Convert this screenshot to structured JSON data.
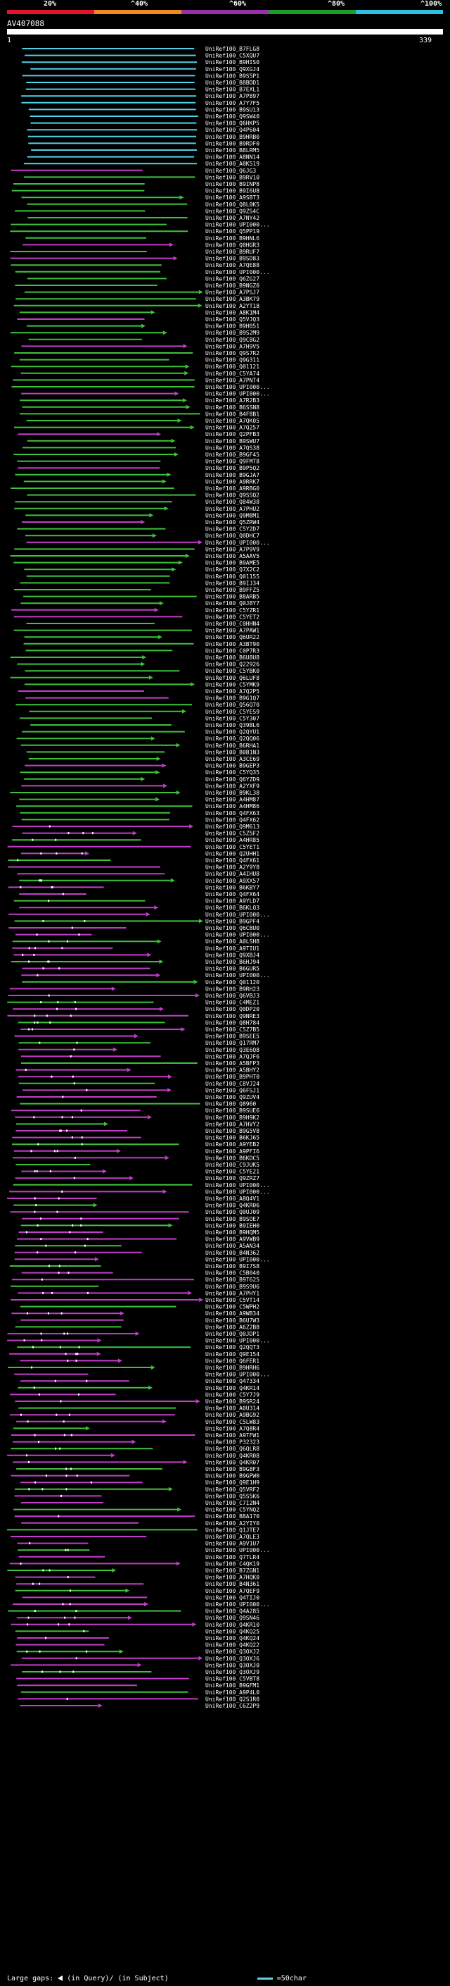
{
  "header": {
    "percent_labels": [
      "20%",
      "^40%",
      "^60%",
      "^80%",
      "^100%"
    ],
    "colors": [
      "#e3132b",
      "#f08a1f",
      "#9a2fa8",
      "#1f9c2c",
      "#2bbfe0"
    ],
    "query_name": "AV407088",
    "coord_start": "1",
    "coord_end": "339"
  },
  "hit_colors": {
    "cyan": "#4fd1e6",
    "green": "#3ec23a",
    "purple": "#c33dc9",
    "arrow": "#ffffff"
  },
  "hits": [
    "UniRef100_B7FLG8",
    "UniRef100_C5XQU7",
    "UniRef100_B9HIS0",
    "UniRef100_Q9XGJ4",
    "UniRef100_B9S5P1",
    "UniRef100_B8BDD1",
    "UniRef100_B7EXL1",
    "UniRef100_A7P897",
    "UniRef100_A7Y7F5",
    "UniRef100_B9SU13",
    "UniRef100_Q9SW40",
    "UniRef100_Q6HKP5",
    "UniRef100_Q4P604",
    "UniRef100_B9HRB0",
    "UniRef100_B9RDF0",
    "UniRef100_B8LRM5",
    "UniRef100_A8NN14",
    "UniRef100_A0K519",
    "UniRef100_Q6JG3",
    "UniRef100_B9RV10",
    "UniRef100_B9INP8",
    "UniRef100_B9I6U8",
    "UniRef100_A9SBT3",
    "UniRef100_Q8L0K5",
    "UniRef100_Q9ZS4C",
    "UniRef100_A7NY42",
    "UniRef100_UPI000...",
    "UniRef100_Q5PP19",
    "UniRef100_B9HNL6",
    "UniRef100_Q0HGR3",
    "UniRef100_B9RUF7",
    "UniRef100_B9SD83",
    "UniRef100_A7QE88",
    "UniRef100_UPI000...",
    "UniRef100_Q6ZG27",
    "UniRef100_B9NGZ0",
    "UniRef100_A7PSJ7",
    "UniRef100_A3BK79",
    "UniRef100_A2YT18",
    "UniRef100_A8K1M4",
    "UniRef100_Q5VJQ3",
    "UniRef100_B9H051",
    "UniRef100_B9S2M9",
    "UniRef100_Q9C8G2",
    "UniRef100_A7H9V5",
    "UniRef100_Q9S7R2",
    "UniRef100_Q9G311",
    "UniRef100_Q01121",
    "UniRef100_C5YA74",
    "UniRef100_A7PNT4",
    "UniRef100_UPI000...",
    "UniRef100_UPI000...",
    "UniRef100_A7R2B3",
    "UniRef100_B6SSN8",
    "UniRef100_B4F8B1",
    "UniRef100_A7QK05",
    "UniRef100_A7Q257",
    "UniRef100_Q2PFB3",
    "UniRef100_B9SWU7",
    "UniRef100_A7QS38",
    "UniRef100_B9GF45",
    "UniRef100_Q9FMT8",
    "UniRef100_B9P5Q2",
    "UniRef100_B9GJA7",
    "UniRef100_A9RRK7",
    "UniRef100_A9RBG0",
    "UniRef100_Q9SSQ2",
    "UniRef100_Q84W38",
    "UniRef100_A7PHU2",
    "UniRef100_Q9M8M1",
    "UniRef100_Q5ZRW4",
    "UniRef100_C5Y2D7",
    "UniRef100_Q0DHC7",
    "UniRef100_UPI000...",
    "UniRef100_A7P9V9",
    "UniRef100_A5AAV5",
    "UniRef100_B9AME5",
    "UniRef100_Q7X2C2",
    "UniRef100_Q01155",
    "UniRef100_B9IJ34",
    "UniRef100_B9FFZ5",
    "UniRef100_B8ARB5",
    "UniRef100_Q0J8Y7",
    "UniRef100_C5YZR1",
    "UniRef100_C5YET2",
    "UniRef100_C0HHN4",
    "UniRef100_A7PAW1",
    "UniRef100_Q6UR22",
    "UniRef100_A3BT90",
    "UniRef100_C0P7R3",
    "UniRef100_B6U8U8",
    "UniRef100_Q22926",
    "UniRef100_C5YBK0",
    "UniRef100_Q6LUF8",
    "UniRef100_C5YMK9",
    "UniRef100_A7Q2P5",
    "UniRef100_B9G1Q7",
    "UniRef100_Q56Q70",
    "UniRef100_C5YES9",
    "UniRef100_C5Y307",
    "UniRef100_Q39BL6",
    "UniRef100_Q2QYU1",
    "UniRef100_Q2QQ06",
    "UniRef100_B6RHA1",
    "UniRef100_B0B1N3",
    "UniRef100_A3CE69",
    "UniRef100_B9GEP3",
    "UniRef100_C5YQ35",
    "UniRef100_Q6YZD9",
    "UniRef100_A2YXF9",
    "UniRef100_B9KL38",
    "UniRef100_A4HM87",
    "UniRef100_A4HM86",
    "UniRef100_Q4FX63",
    "UniRef100_Q4FX62",
    "UniRef100_Q9M613",
    "UniRef100_C5Z5F2",
    "UniRef100_A4HR85",
    "UniRef100_C5YET1",
    "UniRef100_Q2UHH1",
    "UniRef100_Q4FX61",
    "UniRef100_A2Y9Y8",
    "UniRef100_A4IHU8",
    "UniRef100_A9XX57",
    "UniRef100_B6KBY7",
    "UniRef100_Q4FX64",
    "UniRef100_A9YLD7",
    "UniRef100_B6KLQ3",
    "UniRef100_UPI000...",
    "UniRef100_B9GPF4",
    "UniRef100_Q6CBU0",
    "UniRef100_UPI000...",
    "UniRef100_A0LSH8",
    "UniRef100_A9TIU1",
    "UniRef100_Q9XBJ4",
    "UniRef100_B6HJ94",
    "UniRef100_B6GUR5",
    "UniRef100_UPI000...",
    "UniRef100_Q01120",
    "UniRef100_B9RH23",
    "UniRef100_Q6VBJ3",
    "UniRef100_C4MEZ1",
    "UniRef100_Q0DP20",
    "UniRef100_Q9NRE3",
    "UniRef100_Q8H784",
    "UniRef100_C5Z7B5",
    "UniRef100_B9SEE5",
    "UniRef100_Q17RM7",
    "UniRef100_Q3E6Q8",
    "UniRef100_A7QJF6",
    "UniRef100_A5BFP3",
    "UniRef100_A5BHY2",
    "UniRef100_B9PHT0",
    "UniRef100_C8VJ24",
    "UniRef100_Q6FSJ1",
    "UniRef100_Q9ZUV4",
    "UniRef100_Q8960",
    "UniRef100_B9SUE6",
    "UniRef100_B9H9K2",
    "UniRef100_A7HVY2",
    "UniRef100_B9G5V8",
    "UniRef100_B6KJ65",
    "UniRef100_A9YEB2",
    "UniRef100_A9PFI6",
    "UniRef100_B6KDC5",
    "UniRef100_C9JUK5",
    "UniRef100_C5YE21",
    "UniRef100_Q9ZRZ7",
    "UniRef100_UPI000...",
    "UniRef100_UPI000...",
    "UniRef100_A8Q4V1",
    "UniRef100_Q4KR06",
    "UniRef100_Q0UJ09",
    "UniRef100_B9SOE7",
    "UniRef100_B9IEH0",
    "UniRef100_B9HQM5",
    "UniRef100_A9VWB9",
    "UniRef100_A5AN34",
    "UniRef100_B4N362",
    "UniRef100_UPI000...",
    "UniRef100_B9I7S8",
    "UniRef100_C5B040",
    "UniRef100_B9T625",
    "UniRef100_B9S9U6",
    "UniRef100_A7PHY1",
    "UniRef100_C5VT14",
    "UniRef100_C5WPH2",
    "UniRef100_A9WB34",
    "UniRef100_B6U7W3",
    "UniRef100_A6Z2B8",
    "UniRef100_Q0JDP1",
    "UniRef100_UPI000...",
    "UniRef100_Q2QQT3",
    "UniRef100_Q9E154",
    "UniRef100_Q6FER1",
    "UniRef100_B9HRH6",
    "UniRef100_UPI000...",
    "UniRef100_Q47334",
    "UniRef100_Q4KR14",
    "UniRef100_C5Y7J9",
    "UniRef100_B9SR24",
    "UniRef100_A0U314",
    "UniRef100_A9BG92",
    "UniRef100_C5LW83",
    "UniRef100_A7Q8R4",
    "UniRef100_A9TFW1",
    "UniRef100_P32323",
    "UniRef100_Q6QLR8",
    "UniRef100_Q4KR08",
    "UniRef100_Q4KR07",
    "UniRef100_B9G8F3",
    "UniRef100_B9GPW0",
    "UniRef100_Q9E1H9",
    "UniRef100_Q5VRF2",
    "UniRef100_Q5S5K6",
    "UniRef100_C7I2N4",
    "UniRef100_C5YNQ2",
    "UniRef100_B8A170",
    "UniRef100_A2YIY0",
    "UniRef100_Q1JTE7",
    "UniRef100_A7QLE3",
    "UniRef100_A9V1U7",
    "UniRef100_UPI000...",
    "UniRef100_Q7TLR4",
    "UniRef100_C4QK19",
    "UniRef100_B7ZGN1",
    "UniRef100_A7HQK0",
    "UniRef100_B4N361",
    "UniRef100_A7QEF9",
    "UniRef100_Q4TIJ0",
    "UniRef100_UPI000...",
    "UniRef100_Q4A285",
    "UniRef100_Q9SN46",
    "UniRef100_Q4KR10",
    "UniRef100_Q4KQ25",
    "UniRef100_Q4KQ24",
    "UniRef100_Q4KQ22",
    "UniRef100_Q3OXJ2",
    "UniRef100_Q3OXJ6",
    "UniRef100_Q3OXJ0",
    "UniRef100_Q3OXJ9",
    "UniRef100_C5VBT8",
    "UniRef100_B9GFM1",
    "UniRef100_A9P4L0",
    "UniRef100_Q2S1R0",
    "UniRef100_C6Z2P9"
  ],
  "legend": {
    "text": "Large gaps:",
    "query_gap": "(in Query)/",
    "subject_gap": "(in Subject)",
    "scale": "=50char"
  }
}
